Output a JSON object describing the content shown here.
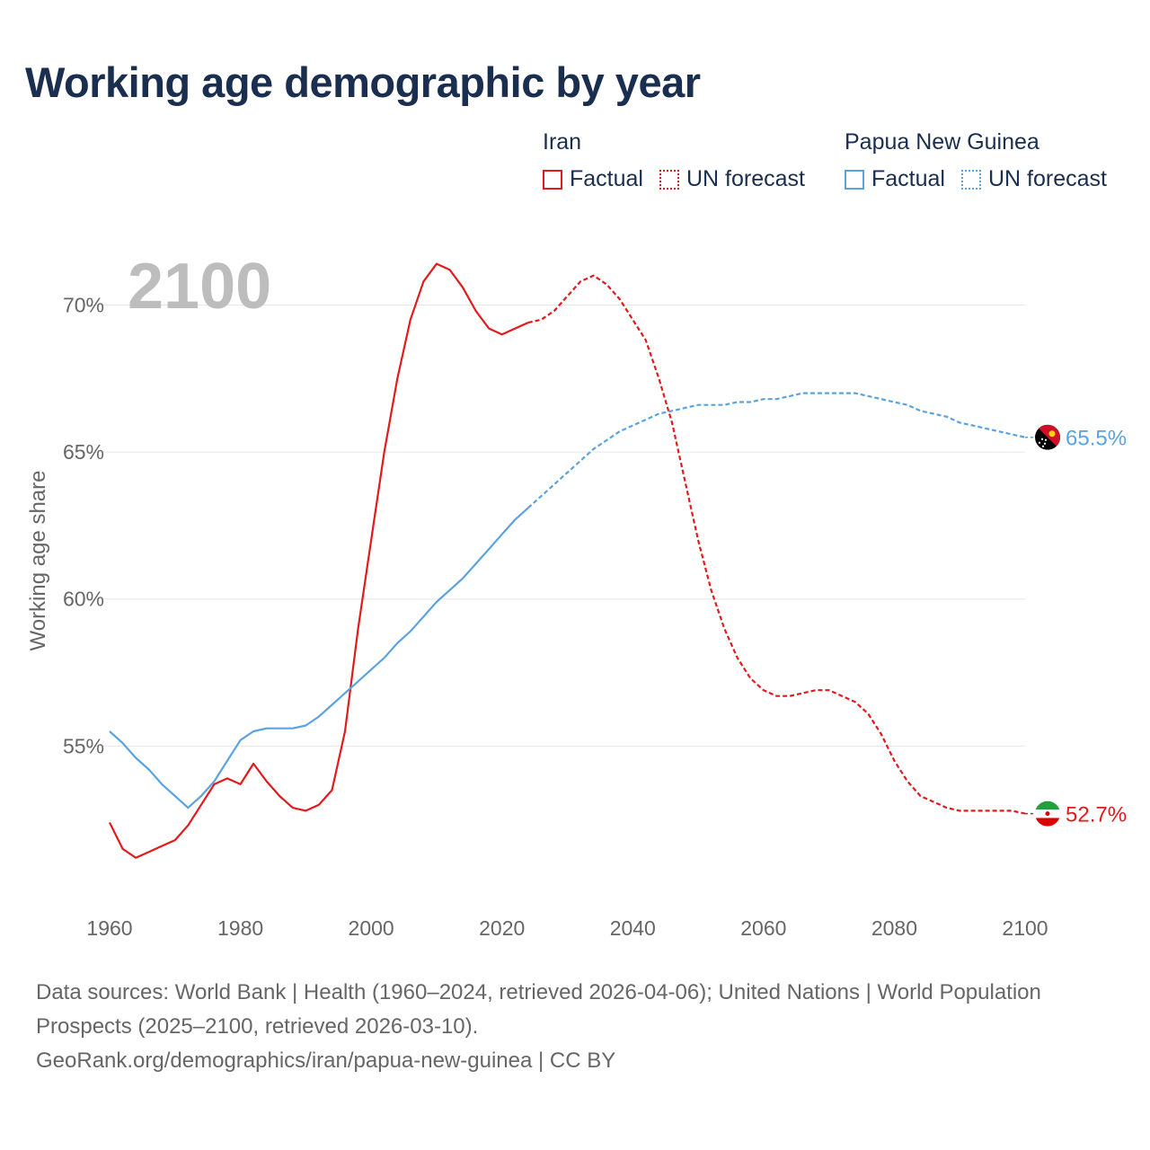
{
  "title": "Working age demographic by year",
  "legend": {
    "groups": [
      {
        "name": "Iran",
        "color": "#e31a1c",
        "factual": "Factual",
        "forecast": "UN forecast"
      },
      {
        "name": "Papua New Guinea",
        "color": "#5ba3e0",
        "factual": "Factual",
        "forecast": "UN forecast"
      }
    ]
  },
  "year_label": "2100",
  "footer": {
    "sources": "Data sources: World Bank | Health (1960–2024, retrieved 2026-04-06); United Nations | World Population Prospects (2025–2100, retrieved 2026-03-10).",
    "link": "GeoRank.org/demographics/iran/papua-new-guinea | CC BY"
  },
  "chart_data": {
    "type": "line",
    "title": "Working age demographic by year",
    "xlabel": "",
    "ylabel": "Working age share",
    "xlim": [
      1960,
      2100
    ],
    "ylim": [
      50,
      72
    ],
    "x_ticks": [
      1960,
      1980,
      2000,
      2020,
      2040,
      2060,
      2080,
      2100
    ],
    "x_tick_labels": [
      "1960",
      "1980",
      "2000",
      "2020",
      "2040",
      "2060",
      "2080",
      "2100"
    ],
    "y_ticks": [
      55,
      60,
      65,
      70
    ],
    "y_tick_labels": [
      "55%",
      "60%",
      "65%",
      "70%"
    ],
    "grid": true,
    "forecast_start": 2024,
    "series": [
      {
        "name": "Iran",
        "color": "#e31a1c",
        "end_label": "52.7%",
        "points": [
          [
            1960,
            52.4
          ],
          [
            1962,
            51.5
          ],
          [
            1964,
            51.2
          ],
          [
            1966,
            51.4
          ],
          [
            1968,
            51.6
          ],
          [
            1970,
            51.8
          ],
          [
            1972,
            52.3
          ],
          [
            1974,
            53.0
          ],
          [
            1976,
            53.7
          ],
          [
            1978,
            53.9
          ],
          [
            1980,
            53.7
          ],
          [
            1982,
            54.4
          ],
          [
            1984,
            53.8
          ],
          [
            1986,
            53.3
          ],
          [
            1988,
            52.9
          ],
          [
            1990,
            52.8
          ],
          [
            1992,
            53.0
          ],
          [
            1994,
            53.5
          ],
          [
            1996,
            55.5
          ],
          [
            1998,
            59.0
          ],
          [
            2000,
            62.0
          ],
          [
            2002,
            65.0
          ],
          [
            2004,
            67.5
          ],
          [
            2006,
            69.5
          ],
          [
            2008,
            70.8
          ],
          [
            2010,
            71.4
          ],
          [
            2012,
            71.2
          ],
          [
            2014,
            70.6
          ],
          [
            2016,
            69.8
          ],
          [
            2018,
            69.2
          ],
          [
            2020,
            69.0
          ],
          [
            2022,
            69.2
          ],
          [
            2024,
            69.4
          ],
          [
            2026,
            69.5
          ],
          [
            2028,
            69.8
          ],
          [
            2030,
            70.3
          ],
          [
            2032,
            70.8
          ],
          [
            2034,
            71.0
          ],
          [
            2036,
            70.7
          ],
          [
            2038,
            70.2
          ],
          [
            2040,
            69.5
          ],
          [
            2042,
            68.8
          ],
          [
            2044,
            67.5
          ],
          [
            2046,
            66.0
          ],
          [
            2048,
            64.0
          ],
          [
            2050,
            62.0
          ],
          [
            2052,
            60.3
          ],
          [
            2054,
            59.0
          ],
          [
            2056,
            58.0
          ],
          [
            2058,
            57.3
          ],
          [
            2060,
            56.9
          ],
          [
            2062,
            56.7
          ],
          [
            2064,
            56.7
          ],
          [
            2066,
            56.8
          ],
          [
            2068,
            56.9
          ],
          [
            2070,
            56.9
          ],
          [
            2072,
            56.7
          ],
          [
            2074,
            56.5
          ],
          [
            2076,
            56.1
          ],
          [
            2078,
            55.4
          ],
          [
            2080,
            54.5
          ],
          [
            2082,
            53.8
          ],
          [
            2084,
            53.3
          ],
          [
            2086,
            53.1
          ],
          [
            2088,
            52.9
          ],
          [
            2090,
            52.8
          ],
          [
            2092,
            52.8
          ],
          [
            2094,
            52.8
          ],
          [
            2096,
            52.8
          ],
          [
            2098,
            52.8
          ],
          [
            2100,
            52.7
          ]
        ]
      },
      {
        "name": "Papua New Guinea",
        "color": "#5ba3e0",
        "end_label": "65.5%",
        "points": [
          [
            1960,
            55.5
          ],
          [
            1962,
            55.1
          ],
          [
            1964,
            54.6
          ],
          [
            1966,
            54.2
          ],
          [
            1968,
            53.7
          ],
          [
            1970,
            53.3
          ],
          [
            1972,
            52.9
          ],
          [
            1974,
            53.3
          ],
          [
            1976,
            53.8
          ],
          [
            1978,
            54.5
          ],
          [
            1980,
            55.2
          ],
          [
            1982,
            55.5
          ],
          [
            1984,
            55.6
          ],
          [
            1986,
            55.6
          ],
          [
            1988,
            55.6
          ],
          [
            1990,
            55.7
          ],
          [
            1992,
            56.0
          ],
          [
            1994,
            56.4
          ],
          [
            1996,
            56.8
          ],
          [
            1998,
            57.2
          ],
          [
            2000,
            57.6
          ],
          [
            2002,
            58.0
          ],
          [
            2004,
            58.5
          ],
          [
            2006,
            58.9
          ],
          [
            2008,
            59.4
          ],
          [
            2010,
            59.9
          ],
          [
            2012,
            60.3
          ],
          [
            2014,
            60.7
          ],
          [
            2016,
            61.2
          ],
          [
            2018,
            61.7
          ],
          [
            2020,
            62.2
          ],
          [
            2022,
            62.7
          ],
          [
            2024,
            63.1
          ],
          [
            2026,
            63.5
          ],
          [
            2028,
            63.9
          ],
          [
            2030,
            64.3
          ],
          [
            2032,
            64.7
          ],
          [
            2034,
            65.1
          ],
          [
            2036,
            65.4
          ],
          [
            2038,
            65.7
          ],
          [
            2040,
            65.9
          ],
          [
            2042,
            66.1
          ],
          [
            2044,
            66.3
          ],
          [
            2046,
            66.4
          ],
          [
            2048,
            66.5
          ],
          [
            2050,
            66.6
          ],
          [
            2052,
            66.6
          ],
          [
            2054,
            66.6
          ],
          [
            2056,
            66.7
          ],
          [
            2058,
            66.7
          ],
          [
            2060,
            66.8
          ],
          [
            2062,
            66.8
          ],
          [
            2064,
            66.9
          ],
          [
            2066,
            67.0
          ],
          [
            2068,
            67.0
          ],
          [
            2070,
            67.0
          ],
          [
            2072,
            67.0
          ],
          [
            2074,
            67.0
          ],
          [
            2076,
            66.9
          ],
          [
            2078,
            66.8
          ],
          [
            2080,
            66.7
          ],
          [
            2082,
            66.6
          ],
          [
            2084,
            66.4
          ],
          [
            2086,
            66.3
          ],
          [
            2088,
            66.2
          ],
          [
            2090,
            66.0
          ],
          [
            2092,
            65.9
          ],
          [
            2094,
            65.8
          ],
          [
            2096,
            65.7
          ],
          [
            2098,
            65.6
          ],
          [
            2100,
            65.5
          ]
        ]
      }
    ]
  }
}
